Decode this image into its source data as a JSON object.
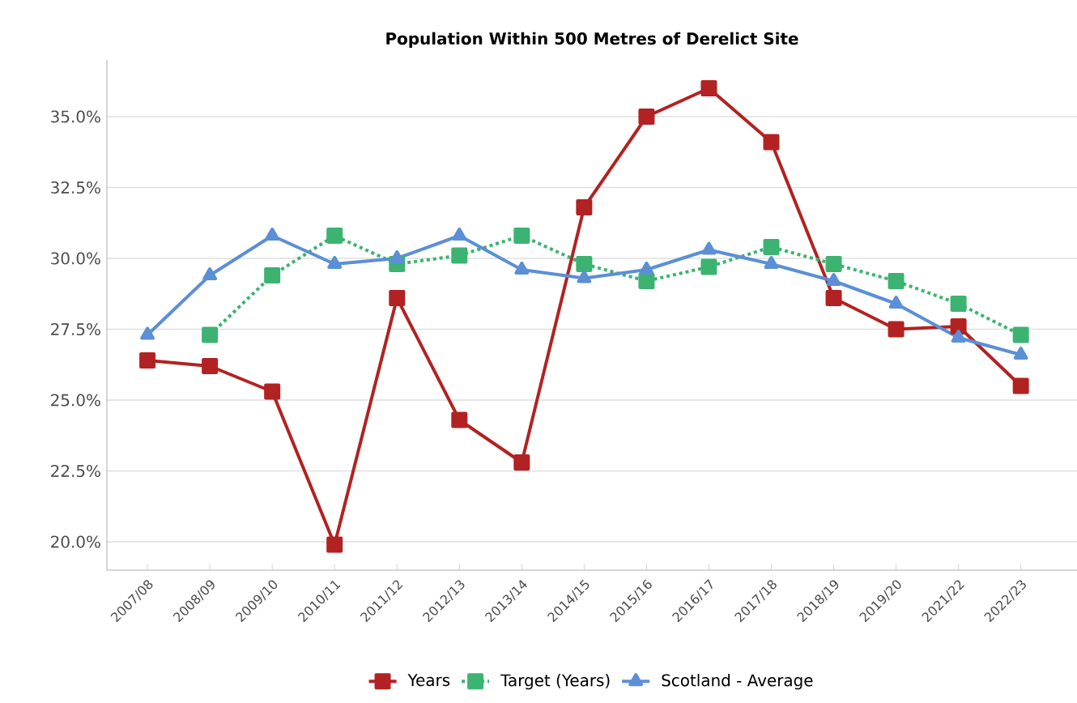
{
  "chart_data": {
    "type": "line",
    "title": "Population Within 500 Metres of Derelict Site",
    "categories": [
      "2007/08",
      "2008/09",
      "2009/10",
      "2010/11",
      "2011/12",
      "2012/13",
      "2013/14",
      "2014/15",
      "2015/16",
      "2016/17",
      "2017/18",
      "2018/19",
      "2019/20",
      "2021/22",
      "2022/23"
    ],
    "series": [
      {
        "name": "Years",
        "color": "#b22222",
        "marker": "square",
        "line_style": "solid",
        "values": [
          26.4,
          26.2,
          25.3,
          19.9,
          28.6,
          24.3,
          22.8,
          31.8,
          35.0,
          36.0,
          34.1,
          28.6,
          27.5,
          27.6,
          25.5
        ]
      },
      {
        "name": "Target (Years)",
        "color": "#3cb371",
        "marker": "square",
        "line_style": "dotted",
        "values": [
          null,
          27.3,
          29.4,
          30.8,
          29.8,
          30.1,
          30.8,
          29.8,
          29.2,
          29.7,
          30.4,
          29.8,
          29.2,
          28.4,
          27.3
        ]
      },
      {
        "name": "Scotland - Average",
        "color": "#5b8fd6",
        "marker": "triangle",
        "line_style": "solid",
        "values": [
          27.3,
          29.4,
          30.8,
          29.8,
          30.0,
          30.8,
          29.6,
          29.3,
          29.6,
          30.3,
          29.8,
          29.2,
          28.4,
          27.2,
          26.6
        ]
      }
    ],
    "ylim": [
      19,
      37
    ],
    "yticks": [
      {
        "value": 20,
        "label": "20.0%"
      },
      {
        "value": 22.5,
        "label": "22.5%"
      },
      {
        "value": 25,
        "label": "25.0%"
      },
      {
        "value": 27.5,
        "label": "27.5%"
      },
      {
        "value": 30,
        "label": "30.0%"
      },
      {
        "value": 32.5,
        "label": "32.5%"
      },
      {
        "value": 35,
        "label": "35.0%"
      }
    ],
    "grid": "y",
    "legend": "bottom"
  }
}
